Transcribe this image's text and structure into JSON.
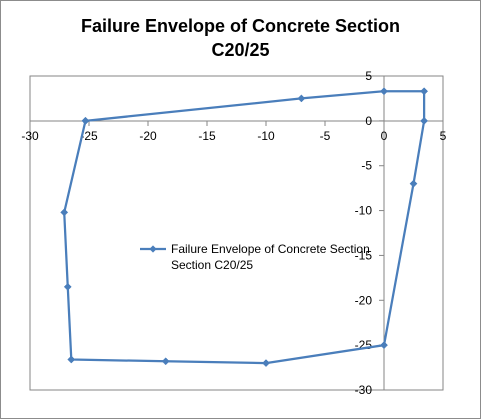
{
  "chart_data": {
    "type": "scatter",
    "title_lines": [
      "Failure Envelope of Concrete Section",
      "C20/25"
    ],
    "xlabel": "",
    "ylabel": "",
    "xlim": [
      -30,
      5
    ],
    "ylim": [
      -30,
      5
    ],
    "x_ticks": [
      -30,
      -25,
      -20,
      -15,
      -10,
      -5,
      0,
      5
    ],
    "y_ticks": [
      5,
      0,
      -5,
      -10,
      -15,
      -20,
      -25,
      -30
    ],
    "grid": false,
    "legend_position": "center-left",
    "series": [
      {
        "name_lines": [
          "Failure Envelope of Concrete Section",
          "Section C20/25"
        ],
        "name": "Failure Envelope of Concrete Section C20/25",
        "color": "#4a7ebb",
        "marker": "diamond",
        "points": [
          [
            -25.3,
            0.0
          ],
          [
            -7.0,
            2.5
          ],
          [
            0.0,
            3.3
          ],
          [
            3.4,
            3.3
          ],
          [
            3.4,
            0.0
          ],
          [
            2.5,
            -7.0
          ],
          [
            0.0,
            -25.0
          ],
          [
            -10.0,
            -27.0
          ],
          [
            -18.5,
            -26.8
          ],
          [
            -26.5,
            -26.6
          ],
          [
            -26.8,
            -18.5
          ],
          [
            -27.1,
            -10.2
          ],
          [
            -25.3,
            0.0
          ]
        ]
      }
    ]
  }
}
